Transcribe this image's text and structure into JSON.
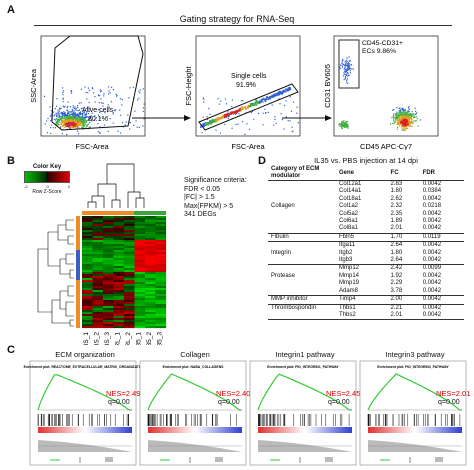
{
  "panels": {
    "a_label": "A",
    "b_label": "B",
    "c_label": "C",
    "d_label": "D"
  },
  "gating": {
    "title": "Gating strategy for RNA-Seq",
    "plot1": {
      "xlabel": "FSC-Area",
      "ylabel": "SSC-Area",
      "gate_name": "Alive cells",
      "gate_pct": "80.1%"
    },
    "plot2": {
      "xlabel": "FSC-Area",
      "ylabel": "FSC-Height",
      "gate_name": "Single cells",
      "gate_pct": "91.9%"
    },
    "plot3": {
      "xlabel": "CD45 APC-Cy7",
      "ylabel": "CD31 BV605",
      "gate_name": "CD45-CD31+",
      "gate_pct": "ECs 9.86%"
    }
  },
  "heatmap": {
    "color_key_title": "Color Key",
    "color_key_label": "Row Z-Score",
    "criteria": [
      "Significance criteria:",
      "FDR < 0.05",
      "|FC| > 1.5",
      "Max(FPKM) > 5",
      "341 DEGs"
    ],
    "samples": [
      "PBS_1",
      "PBS_2",
      "PBS_3",
      "CTRL_1",
      "CTRL_2",
      "IL35_1",
      "IL35_2",
      "IL35_3"
    ],
    "colors": {
      "orange": "#f08a24",
      "green": "#3aa53a",
      "blue": "#3b5fc4",
      "high": "#e00000",
      "low": "#00c000"
    }
  },
  "table": {
    "title": "IL35 vs. PBS injection at 14 dpi",
    "header": [
      "Category of ECM modulator",
      "Gene",
      "FC",
      "FDR"
    ],
    "groups": [
      {
        "category": "Collagen",
        "rows": [
          [
            "Col12a1",
            "2.83",
            "0.0042"
          ],
          [
            "Col14a1",
            "1.80",
            "0.0384"
          ],
          [
            "Col18a1",
            "2.62",
            "0.0042"
          ],
          [
            "Col1a2",
            "2.32",
            "0.0218"
          ],
          [
            "Col5a2",
            "2.35",
            "0.0042"
          ],
          [
            "Col6a1",
            "1.89",
            "0.0042"
          ],
          [
            "Col8a1",
            "2.01",
            "0.0042"
          ]
        ]
      },
      {
        "category": "Fibulin",
        "rows": [
          [
            "Fbln5",
            "1.70",
            "0.0119"
          ]
        ]
      },
      {
        "category": "Integrin",
        "rows": [
          [
            "Itga11",
            "2.64",
            "0.0042"
          ],
          [
            "Itgb2",
            "1.80",
            "0.0042"
          ],
          [
            "Itgb3",
            "2.64",
            "0.0042"
          ]
        ]
      },
      {
        "category": "Protease",
        "rows": [
          [
            "Mmp12",
            "2.42",
            "0.0099"
          ],
          [
            "Mmp14",
            "1.92",
            "0.0042"
          ],
          [
            "Mmp19",
            "2.29",
            "0.0042"
          ],
          [
            "Adam8",
            "3.78",
            "0.0042"
          ]
        ]
      },
      {
        "category": "MMP inhibitor",
        "rows": [
          [
            "Timp4",
            "2.00",
            "0.0042"
          ]
        ]
      },
      {
        "category": "Thrombospondin",
        "rows": [
          [
            "Thbs1",
            "2.21",
            "0.0042"
          ],
          [
            "Thbs2",
            "2.01",
            "0.0042"
          ]
        ]
      }
    ]
  },
  "gsea": [
    {
      "title": "ECM organization",
      "plot_title": "Enrichment plot: REACTOME_EXTRACELLULAR_MATRIX_ORGANIZATIO",
      "nes": "NES=2.49",
      "q": "q=0.00"
    },
    {
      "title": "Collagen",
      "plot_title": "Enrichment plot: NABA_COLLAGENS",
      "nes": "NES=2.40",
      "q": "q=0.00"
    },
    {
      "title": "Integrin1 pathway",
      "plot_title": "Enrichment plot: PID_INTEGRIN1_PATHWAY",
      "nes": "NES=2.45",
      "q": "q=0.00"
    },
    {
      "title": "Integrin3 pathway",
      "plot_title": "Enrichment plot: PID_INTEGRIN3_PATHWAY",
      "nes": "NES=2.01",
      "q": "q=0.00"
    }
  ]
}
